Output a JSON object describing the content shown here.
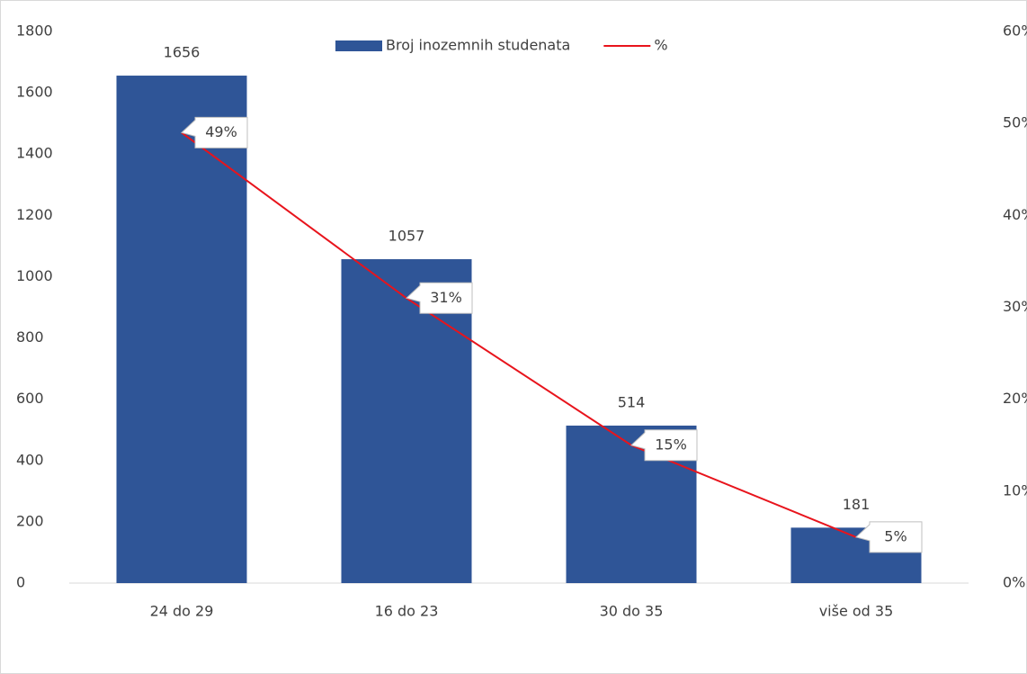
{
  "chart_data": {
    "type": "bar",
    "categories": [
      "24 do 29",
      "16 do 23",
      "30 do 35",
      "više od 35"
    ],
    "series": [
      {
        "name": "Broj inozemnih studenata",
        "type": "bar",
        "color": "#2f5597",
        "values": [
          1656,
          1057,
          514,
          181
        ]
      },
      {
        "name": "%",
        "type": "line",
        "axis": "y2",
        "color": "#e8141c",
        "values": [
          49,
          31,
          15,
          5
        ],
        "value_labels": [
          "49%",
          "31%",
          "15%",
          "5%"
        ]
      }
    ],
    "ylim": [
      0,
      1800
    ],
    "yticks": [
      0,
      200,
      400,
      600,
      800,
      1000,
      1200,
      1400,
      1600,
      1800
    ],
    "y2lim": [
      0,
      60
    ],
    "y2ticks": [
      {
        "value": 0,
        "label": "0%"
      },
      {
        "value": 10,
        "label": "10%"
      },
      {
        "value": 20,
        "label": "20%"
      },
      {
        "value": 30,
        "label": "30%"
      },
      {
        "value": 40,
        "label": "40%"
      },
      {
        "value": 50,
        "label": "50%"
      },
      {
        "value": 60,
        "label": "60%"
      }
    ],
    "legend": "top",
    "grid": false
  }
}
